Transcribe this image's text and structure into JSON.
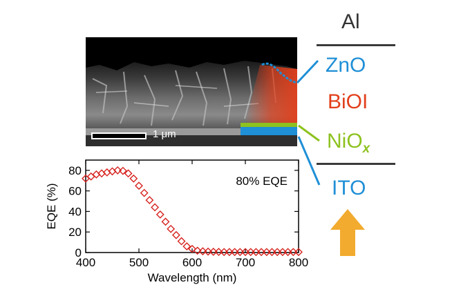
{
  "layer_stack": {
    "top_contact": "Al",
    "etl_layer": "ZnO",
    "absorber_layer": "BiOI",
    "htl_base": "NiO",
    "htl_subscript": "x",
    "bottom_contact": "ITO"
  },
  "colors": {
    "zno": "#1f8fd6",
    "bioi": "#e2401c",
    "niox": "#8dc21f",
    "ito": "#1f8fd6",
    "al": "#333333",
    "arrow": "#f2ab2e",
    "marker": "#d6221e"
  },
  "sem": {
    "scale_bar_label": "1 μm"
  },
  "chart_data": {
    "type": "scatter",
    "title": "",
    "annotation": "80% EQE",
    "xlabel": "Wavelength (nm)",
    "ylabel": "EQE (%)",
    "xlim": [
      400,
      800
    ],
    "ylim": [
      0,
      90
    ],
    "xticks": [
      400,
      500,
      600,
      700,
      800
    ],
    "yticks": [
      0,
      20,
      40,
      60,
      80
    ],
    "series": [
      {
        "name": "EQE",
        "x": [
          400,
          410,
          420,
          430,
          440,
          450,
          460,
          470,
          480,
          490,
          500,
          510,
          520,
          530,
          540,
          550,
          560,
          570,
          580,
          590,
          600,
          610,
          620,
          630,
          640,
          650,
          660,
          670,
          680,
          690,
          700,
          710,
          720,
          730,
          740,
          750,
          760,
          770,
          780,
          790,
          800
        ],
        "values": [
          72,
          74,
          76,
          77,
          78,
          79,
          80,
          79.5,
          77,
          72,
          65,
          58,
          51,
          44,
          37,
          30,
          23,
          17,
          11,
          6,
          3.5,
          1.8,
          1.2,
          0.9,
          0.7,
          0.6,
          0.5,
          0.5,
          0.5,
          0.5,
          0.5,
          0.5,
          0.5,
          0.5,
          0.5,
          0.5,
          0.5,
          0.5,
          0.5,
          0.5,
          0.5
        ]
      }
    ]
  }
}
